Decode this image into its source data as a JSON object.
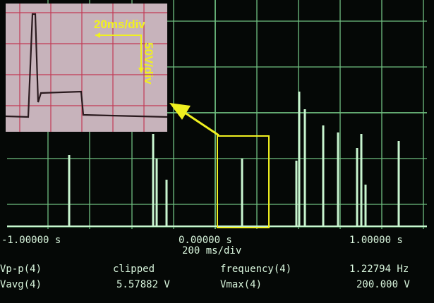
{
  "inset": {
    "time_scale": "20ms/div",
    "volt_scale": "50V/div"
  },
  "screen": {
    "time_labels": {
      "left": "-1.00000 s",
      "center": "0.00000 s",
      "right": "1.00000 s"
    },
    "timebase": "200 ms/div",
    "measurements": [
      {
        "label": "Vp-p(4)",
        "value": "clipped"
      },
      {
        "label": "frequency(4)",
        "value": "1.22794 Hz"
      },
      {
        "label": "Vavg(4)",
        "value": "5.57882 V"
      },
      {
        "label": "Vmax(4)",
        "value": "200.000 V"
      }
    ]
  }
}
